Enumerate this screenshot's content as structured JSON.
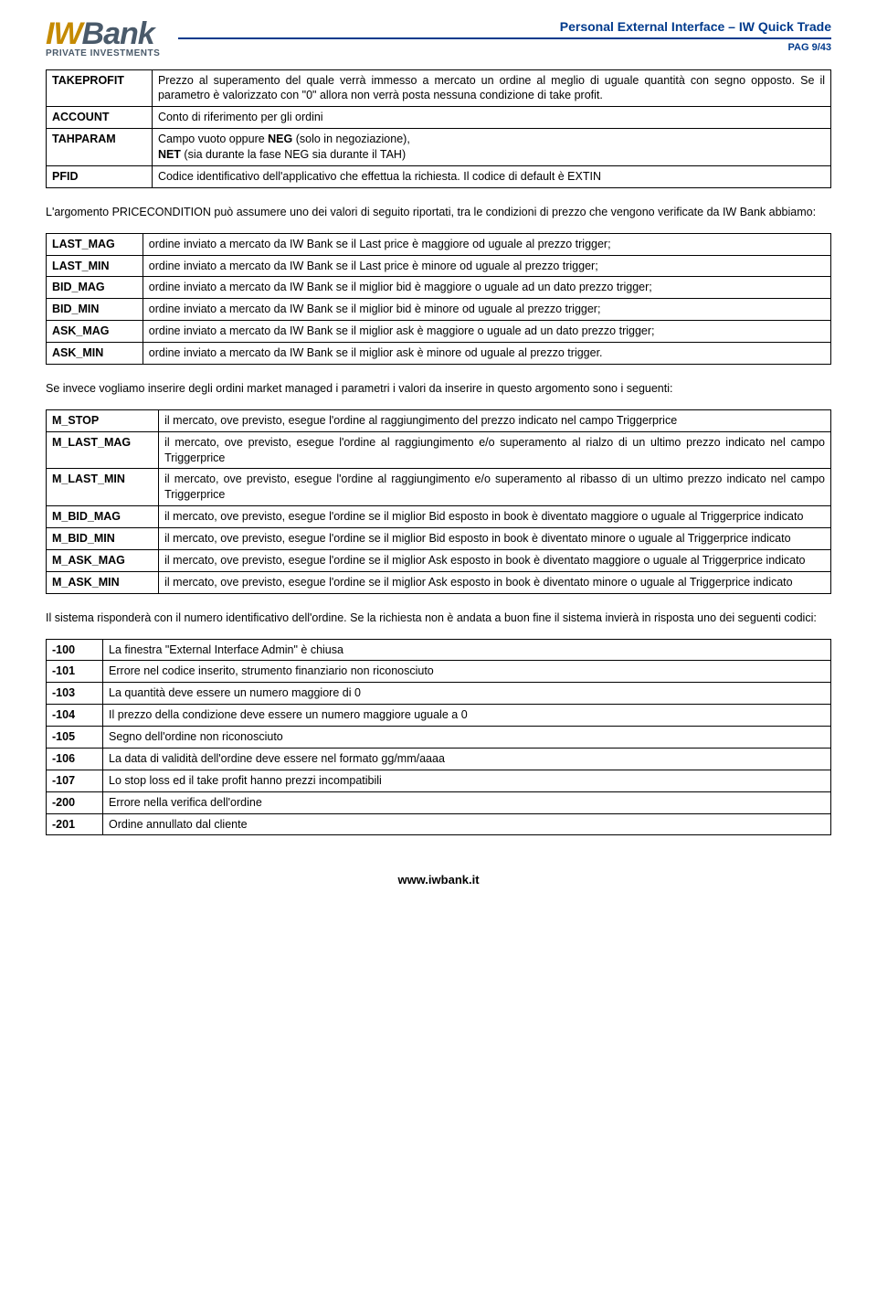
{
  "header": {
    "logo_iw": "IW",
    "logo_bank": "Bank",
    "logo_sub": "PRIVATE INVESTMENTS",
    "doc_title": "Personal External Interface – IW Quick Trade",
    "page": "PAG 9/43"
  },
  "table1": {
    "rows": [
      {
        "key": "TAKEPROFIT",
        "val": "Prezzo al superamento del quale verrà immesso a mercato un ordine al meglio di uguale quantità con segno opposto. Se il parametro è valorizzato con \"0\" allora non verrà posta nessuna condizione di take profit."
      },
      {
        "key": "ACCOUNT",
        "val": "Conto di riferimento per gli ordini"
      },
      {
        "key": "TAHPARAM",
        "val": "Campo vuoto oppure <b>NEG</b> (solo in negoziazione),<br><b>NET</b> (sia durante la fase NEG sia durante il TAH)"
      },
      {
        "key": "PFID",
        "val": "Codice identificativo dell'applicativo che effettua la richiesta. Il codice di default è EXTIN"
      }
    ]
  },
  "para1": "L'argomento PRICECONDITION può assumere uno dei valori di seguito riportati, tra le condizioni di prezzo che vengono verificate da IW Bank abbiamo:",
  "table2": {
    "rows": [
      {
        "key": "LAST_MAG",
        "val": "ordine inviato a mercato da IW Bank se il Last price è maggiore od uguale al prezzo trigger;"
      },
      {
        "key": "LAST_MIN",
        "val": "ordine inviato a mercato da IW Bank se il Last price è minore od uguale al prezzo trigger;"
      },
      {
        "key": "BID_MAG",
        "val": "ordine inviato a mercato da IW Bank se il miglior bid è maggiore o uguale ad un dato prezzo trigger;"
      },
      {
        "key": "BID_MIN",
        "val": "ordine inviato a mercato da IW Bank se il  miglior bid è minore od uguale al prezzo trigger;"
      },
      {
        "key": "ASK_MAG",
        "val": "ordine inviato a mercato da IW Bank se il miglior ask è maggiore o uguale ad un dato prezzo trigger;"
      },
      {
        "key": "ASK_MIN",
        "val": "ordine inviato a mercato da IW Bank se il  miglior ask è minore od uguale al prezzo trigger."
      }
    ]
  },
  "para2": "Se invece vogliamo inserire degli ordini market managed i parametri i valori da inserire in questo argomento sono i seguenti:",
  "table3": {
    "rows": [
      {
        "key": "M_STOP",
        "val": "il mercato, ove previsto, esegue l'ordine al raggiungimento del prezzo indicato nel campo Triggerprice"
      },
      {
        "key": "M_LAST_MAG",
        "val": "il mercato, ove previsto, esegue l'ordine al raggiungimento e/o superamento al rialzo di un ultimo prezzo indicato nel campo Triggerprice"
      },
      {
        "key": "M_LAST_MIN",
        "val": "il mercato, ove previsto, esegue l'ordine al raggiungimento e/o superamento al ribasso di un ultimo prezzo indicato nel campo Triggerprice"
      },
      {
        "key": "M_BID_MAG",
        "val": "il mercato, ove previsto, esegue l'ordine se il miglior Bid esposto in book è diventato maggiore o uguale al Triggerprice indicato"
      },
      {
        "key": "M_BID_MIN",
        "val": "il mercato, ove previsto, esegue l'ordine se il miglior Bid esposto in book è diventato minore o uguale al Triggerprice indicato"
      },
      {
        "key": "M_ASK_MAG",
        "val": "il mercato, ove previsto, esegue l'ordine se il miglior Ask esposto in book è diventato maggiore o uguale al Triggerprice indicato"
      },
      {
        "key": "M_ASK_MIN",
        "val": "il mercato, ove previsto, esegue l'ordine se il miglior Ask esposto in book è diventato minore o uguale al Triggerprice indicato"
      }
    ]
  },
  "para3": "Il sistema risponderà con il numero identificativo dell'ordine. Se la richiesta non è andata a buon fine il sistema invierà in risposta uno dei seguenti codici:",
  "table4": {
    "rows": [
      {
        "key": "-100",
        "val": "La finestra \"External Interface Admin\" è chiusa"
      },
      {
        "key": "-101",
        "val": "Errore nel codice inserito, strumento finanziario non riconosciuto"
      },
      {
        "key": "-103",
        "val": "La quantità deve essere un numero maggiore di 0"
      },
      {
        "key": "-104",
        "val": "Il prezzo della condizione deve essere un numero maggiore uguale a 0"
      },
      {
        "key": "-105",
        "val": "Segno dell'ordine non riconosciuto"
      },
      {
        "key": "-106",
        "val": "La data di validità dell'ordine deve essere nel formato gg/mm/aaaa"
      },
      {
        "key": "-107",
        "val": "Lo stop loss ed il take profit hanno prezzi incompatibili"
      },
      {
        "key": "-200",
        "val": "Errore nella verifica dell'ordine"
      },
      {
        "key": "-201",
        "val": "Ordine annullato dal cliente"
      }
    ]
  },
  "footer": "www.iwbank.it"
}
